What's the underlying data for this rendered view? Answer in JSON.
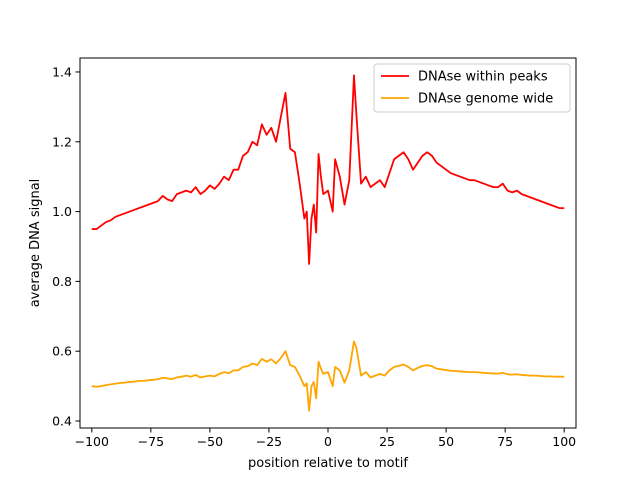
{
  "chart_data": {
    "type": "line",
    "xlabel": "position relative to motif",
    "ylabel": "average DNA signal",
    "xlim": [
      -105,
      105
    ],
    "ylim": [
      0.38,
      1.44
    ],
    "xticks": [
      -100,
      -75,
      -50,
      -25,
      0,
      25,
      50,
      75,
      100
    ],
    "yticks": [
      0.4,
      0.6,
      0.8,
      1.0,
      1.2,
      1.4
    ],
    "xtick_labels": [
      "−100",
      "−75",
      "−50",
      "−25",
      "0",
      "25",
      "50",
      "75",
      "100"
    ],
    "ytick_labels": [
      "0.4",
      "0.6",
      "0.8",
      "1.0",
      "1.2",
      "1.4"
    ],
    "grid": false,
    "legend": "top-right",
    "series": [
      {
        "name": "DNAse within peaks",
        "color": "#ff0000",
        "points": [
          [
            -100,
            0.95
          ],
          [
            -98,
            0.95
          ],
          [
            -96,
            0.96
          ],
          [
            -94,
            0.97
          ],
          [
            -92,
            0.975
          ],
          [
            -90,
            0.985
          ],
          [
            -88,
            0.99
          ],
          [
            -86,
            0.995
          ],
          [
            -84,
            1.0
          ],
          [
            -82,
            1.005
          ],
          [
            -80,
            1.01
          ],
          [
            -78,
            1.015
          ],
          [
            -76,
            1.02
          ],
          [
            -74,
            1.025
          ],
          [
            -72,
            1.03
          ],
          [
            -70,
            1.045
          ],
          [
            -68,
            1.035
          ],
          [
            -66,
            1.03
          ],
          [
            -64,
            1.05
          ],
          [
            -62,
            1.055
          ],
          [
            -60,
            1.06
          ],
          [
            -58,
            1.055
          ],
          [
            -56,
            1.07
          ],
          [
            -54,
            1.05
          ],
          [
            -52,
            1.06
          ],
          [
            -50,
            1.075
          ],
          [
            -48,
            1.065
          ],
          [
            -46,
            1.08
          ],
          [
            -44,
            1.1
          ],
          [
            -42,
            1.09
          ],
          [
            -40,
            1.12
          ],
          [
            -38,
            1.12
          ],
          [
            -36,
            1.16
          ],
          [
            -34,
            1.17
          ],
          [
            -32,
            1.2
          ],
          [
            -30,
            1.19
          ],
          [
            -28,
            1.25
          ],
          [
            -26,
            1.22
          ],
          [
            -24,
            1.24
          ],
          [
            -22,
            1.2
          ],
          [
            -20,
            1.27
          ],
          [
            -18,
            1.34
          ],
          [
            -16,
            1.18
          ],
          [
            -14,
            1.17
          ],
          [
            -12,
            1.08
          ],
          [
            -10,
            0.98
          ],
          [
            -9,
            1.0
          ],
          [
            -8,
            0.85
          ],
          [
            -7,
            0.98
          ],
          [
            -6,
            1.02
          ],
          [
            -5,
            0.94
          ],
          [
            -4,
            1.165
          ],
          [
            -3,
            1.1
          ],
          [
            -2,
            1.05
          ],
          [
            0,
            1.06
          ],
          [
            2,
            1.0
          ],
          [
            3,
            1.15
          ],
          [
            5,
            1.1
          ],
          [
            7,
            1.02
          ],
          [
            9,
            1.09
          ],
          [
            11,
            1.39
          ],
          [
            12,
            1.28
          ],
          [
            14,
            1.08
          ],
          [
            16,
            1.1
          ],
          [
            18,
            1.07
          ],
          [
            20,
            1.08
          ],
          [
            22,
            1.09
          ],
          [
            24,
            1.07
          ],
          [
            26,
            1.11
          ],
          [
            28,
            1.15
          ],
          [
            30,
            1.16
          ],
          [
            32,
            1.17
          ],
          [
            34,
            1.15
          ],
          [
            36,
            1.12
          ],
          [
            38,
            1.14
          ],
          [
            40,
            1.16
          ],
          [
            42,
            1.17
          ],
          [
            44,
            1.16
          ],
          [
            46,
            1.14
          ],
          [
            48,
            1.13
          ],
          [
            50,
            1.12
          ],
          [
            52,
            1.11
          ],
          [
            54,
            1.105
          ],
          [
            56,
            1.1
          ],
          [
            58,
            1.095
          ],
          [
            60,
            1.09
          ],
          [
            62,
            1.09
          ],
          [
            64,
            1.085
          ],
          [
            66,
            1.08
          ],
          [
            68,
            1.075
          ],
          [
            70,
            1.07
          ],
          [
            72,
            1.07
          ],
          [
            74,
            1.08
          ],
          [
            76,
            1.06
          ],
          [
            78,
            1.055
          ],
          [
            80,
            1.06
          ],
          [
            82,
            1.05
          ],
          [
            84,
            1.045
          ],
          [
            86,
            1.04
          ],
          [
            88,
            1.035
          ],
          [
            90,
            1.03
          ],
          [
            92,
            1.025
          ],
          [
            94,
            1.02
          ],
          [
            96,
            1.015
          ],
          [
            98,
            1.01
          ],
          [
            100,
            1.01
          ]
        ]
      },
      {
        "name": "DNAse genome wide",
        "color": "#ffa500",
        "points": [
          [
            -100,
            0.5
          ],
          [
            -98,
            0.498
          ],
          [
            -96,
            0.5
          ],
          [
            -94,
            0.503
          ],
          [
            -92,
            0.505
          ],
          [
            -90,
            0.507
          ],
          [
            -88,
            0.509
          ],
          [
            -86,
            0.51
          ],
          [
            -84,
            0.512
          ],
          [
            -82,
            0.513
          ],
          [
            -80,
            0.515
          ],
          [
            -78,
            0.515
          ],
          [
            -76,
            0.517
          ],
          [
            -74,
            0.518
          ],
          [
            -72,
            0.52
          ],
          [
            -70,
            0.524
          ],
          [
            -68,
            0.522
          ],
          [
            -66,
            0.52
          ],
          [
            -64,
            0.525
          ],
          [
            -62,
            0.527
          ],
          [
            -60,
            0.53
          ],
          [
            -58,
            0.527
          ],
          [
            -56,
            0.532
          ],
          [
            -54,
            0.525
          ],
          [
            -52,
            0.528
          ],
          [
            -50,
            0.53
          ],
          [
            -48,
            0.528
          ],
          [
            -46,
            0.535
          ],
          [
            -44,
            0.54
          ],
          [
            -42,
            0.537
          ],
          [
            -40,
            0.545
          ],
          [
            -38,
            0.545
          ],
          [
            -36,
            0.555
          ],
          [
            -34,
            0.557
          ],
          [
            -32,
            0.565
          ],
          [
            -30,
            0.56
          ],
          [
            -28,
            0.578
          ],
          [
            -26,
            0.57
          ],
          [
            -24,
            0.577
          ],
          [
            -22,
            0.565
          ],
          [
            -20,
            0.58
          ],
          [
            -18,
            0.6
          ],
          [
            -16,
            0.56
          ],
          [
            -14,
            0.555
          ],
          [
            -12,
            0.53
          ],
          [
            -10,
            0.5
          ],
          [
            -9,
            0.508
          ],
          [
            -8,
            0.43
          ],
          [
            -7,
            0.5
          ],
          [
            -6,
            0.512
          ],
          [
            -5,
            0.465
          ],
          [
            -4,
            0.57
          ],
          [
            -3,
            0.55
          ],
          [
            -2,
            0.535
          ],
          [
            0,
            0.54
          ],
          [
            2,
            0.5
          ],
          [
            3,
            0.555
          ],
          [
            5,
            0.545
          ],
          [
            7,
            0.51
          ],
          [
            9,
            0.545
          ],
          [
            11,
            0.628
          ],
          [
            12,
            0.61
          ],
          [
            14,
            0.53
          ],
          [
            16,
            0.54
          ],
          [
            18,
            0.525
          ],
          [
            20,
            0.53
          ],
          [
            22,
            0.535
          ],
          [
            24,
            0.53
          ],
          [
            26,
            0.545
          ],
          [
            28,
            0.555
          ],
          [
            30,
            0.558
          ],
          [
            32,
            0.562
          ],
          [
            34,
            0.555
          ],
          [
            36,
            0.545
          ],
          [
            38,
            0.552
          ],
          [
            40,
            0.558
          ],
          [
            42,
            0.56
          ],
          [
            44,
            0.557
          ],
          [
            46,
            0.55
          ],
          [
            48,
            0.548
          ],
          [
            50,
            0.546
          ],
          [
            52,
            0.544
          ],
          [
            54,
            0.543
          ],
          [
            56,
            0.542
          ],
          [
            58,
            0.541
          ],
          [
            60,
            0.54
          ],
          [
            62,
            0.54
          ],
          [
            64,
            0.539
          ],
          [
            66,
            0.538
          ],
          [
            68,
            0.537
          ],
          [
            70,
            0.536
          ],
          [
            72,
            0.536
          ],
          [
            74,
            0.538
          ],
          [
            76,
            0.534
          ],
          [
            78,
            0.533
          ],
          [
            80,
            0.534
          ],
          [
            82,
            0.532
          ],
          [
            84,
            0.531
          ],
          [
            86,
            0.53
          ],
          [
            88,
            0.53
          ],
          [
            90,
            0.529
          ],
          [
            92,
            0.528
          ],
          [
            94,
            0.528
          ],
          [
            96,
            0.527
          ],
          [
            98,
            0.527
          ],
          [
            100,
            0.527
          ]
        ]
      }
    ]
  }
}
